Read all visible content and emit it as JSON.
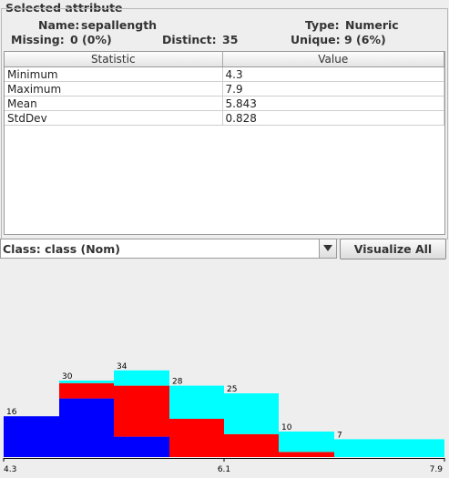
{
  "panel": {
    "title": "Selected attribute"
  },
  "attribute": {
    "name_label": "Name:",
    "name": "sepallength",
    "type_label": "Type:",
    "type": "Numeric",
    "missing_label": "Missing:",
    "missing": "0 (0%)",
    "distinct_label": "Distinct:",
    "distinct": "35",
    "unique_label": "Unique:",
    "unique": "9 (6%)"
  },
  "stats_table": {
    "headers": [
      "Statistic",
      "Value"
    ],
    "rows": [
      {
        "statistic": "Minimum",
        "value": "4.3"
      },
      {
        "statistic": "Maximum",
        "value": "7.9"
      },
      {
        "statistic": "Mean",
        "value": "5.843"
      },
      {
        "statistic": "StdDev",
        "value": "0.828"
      }
    ]
  },
  "class_selector": {
    "value": "Class: class (Nom)"
  },
  "visualize_button": {
    "label": "Visualize All"
  },
  "colors": {
    "class_1": "#0000ff",
    "class_2": "#ff0000",
    "class_3": "#00ffff"
  },
  "chart_data": {
    "type": "bar",
    "stacked": true,
    "x_ticks": [
      "4.3",
      "6.1",
      "7.9"
    ],
    "xlim": [
      4.3,
      7.9
    ],
    "bins": [
      {
        "from": 4.3,
        "to": 4.75,
        "total": 16,
        "stack": [
          16,
          0,
          0
        ]
      },
      {
        "from": 4.75,
        "to": 5.2,
        "total": 30,
        "stack": [
          23,
          6,
          1
        ]
      },
      {
        "from": 5.2,
        "to": 5.65,
        "total": 34,
        "stack": [
          8,
          20,
          6
        ]
      },
      {
        "from": 5.65,
        "to": 6.1,
        "total": 28,
        "stack": [
          0,
          15,
          13
        ]
      },
      {
        "from": 6.1,
        "to": 6.55,
        "total": 25,
        "stack": [
          0,
          9,
          16
        ]
      },
      {
        "from": 6.55,
        "to": 7.0,
        "total": 10,
        "stack": [
          0,
          2,
          8
        ]
      },
      {
        "from": 7.0,
        "to": 7.45,
        "total": 7,
        "stack": [
          0,
          0,
          7
        ]
      },
      {
        "from": 7.45,
        "to": 7.9,
        "total": 7,
        "stack": [
          0,
          0,
          7
        ]
      }
    ],
    "stack_labels": [
      {
        "bin": 0,
        "text": "16"
      },
      {
        "bin": 1,
        "text": "30"
      },
      {
        "bin": 2,
        "text": "34"
      },
      {
        "bin": 3,
        "text": "28"
      },
      {
        "bin": 4,
        "text": "25"
      },
      {
        "bin": 5,
        "text": "10"
      },
      {
        "bin": 6,
        "text": "7"
      }
    ]
  }
}
